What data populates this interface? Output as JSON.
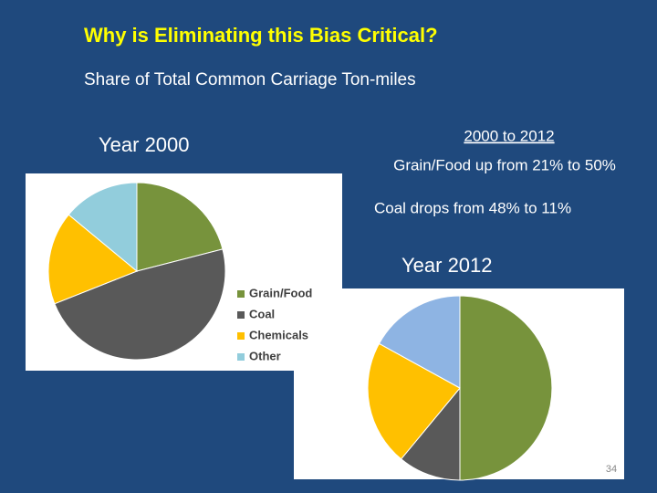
{
  "title": "Why is Eliminating this Bias Critical?",
  "subtitle": "Share of Total Common Carriage Ton-miles",
  "notes": [
    "2000 to 2012",
    "Grain/Food up from 21% to 50%",
    "Coal drops from 48% to 11%"
  ],
  "page_number": "34",
  "chart_data": [
    {
      "type": "pie",
      "title": "Year 2000",
      "categories": [
        "Grain/Food",
        "Coal",
        "Chemicals",
        "Other"
      ],
      "values": [
        21,
        48,
        17,
        14
      ],
      "colors": [
        "#77933c",
        "#595959",
        "#ffc000",
        "#92cddc"
      ],
      "legend": "right"
    },
    {
      "type": "pie",
      "title": "Year 2012",
      "values": [
        50,
        11,
        22,
        17
      ],
      "colors": [
        "#77933c",
        "#595959",
        "#ffc000",
        "#8eb4e3"
      ]
    }
  ]
}
